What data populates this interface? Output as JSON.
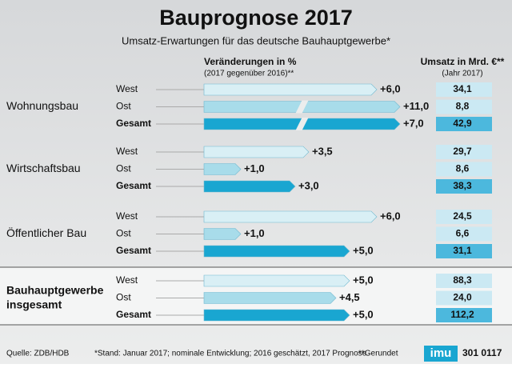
{
  "chart_data": {
    "type": "arrow-bar",
    "title": "Bauprognose 2017",
    "subtitle": "Umsatz-Erwartungen für das deutsche Bauhauptgewerbe*",
    "change_header": "Veränderungen in %",
    "change_subheader": "(2017 gegenüber 2016)**",
    "umsatz_header": "Umsatz in Mrd. €**",
    "umsatz_subheader": "(Jahr 2017)",
    "colors": [
      "#d9eff5",
      "#a8dcea",
      "#19a6d1"
    ],
    "groups": [
      {
        "name": "Wohnungsbau",
        "categories": [
          "West",
          "Ost",
          "Gesamt"
        ],
        "values": [
          6.0,
          11.0,
          7.0
        ],
        "value_labels": [
          "+6,0",
          "+11,0",
          "+7,0"
        ],
        "umsatz": [
          "34,1",
          "8,8",
          "42,9"
        ]
      },
      {
        "name": "Wirtschaftsbau",
        "categories": [
          "West",
          "Ost",
          "Gesamt"
        ],
        "values": [
          3.5,
          1.0,
          3.0
        ],
        "value_labels": [
          "+3,5",
          "+1,0",
          "+3,0"
        ],
        "umsatz": [
          "29,7",
          "8,6",
          "38,3"
        ]
      },
      {
        "name": "Öffentlicher Bau",
        "categories": [
          "West",
          "Ost",
          "Gesamt"
        ],
        "values": [
          6.0,
          1.0,
          5.0
        ],
        "value_labels": [
          "+6,0",
          "+1,0",
          "+5,0"
        ],
        "umsatz": [
          "24,5",
          "6,6",
          "31,1"
        ]
      },
      {
        "name": "Bauhauptgewerbe insgesamt",
        "categories": [
          "West",
          "Ost",
          "Gesamt"
        ],
        "values": [
          5.0,
          4.5,
          5.0
        ],
        "value_labels": [
          "+5,0",
          "+4,5",
          "+5,0"
        ],
        "umsatz": [
          "88,3",
          "24,0",
          "112,2"
        ]
      }
    ],
    "footer": {
      "source": "Quelle: ZDB/HDB",
      "note": "*Stand: Januar 2017; nominale Entwicklung; 2016 geschätzt, 2017 Prognose",
      "note2": "**Gerundet",
      "logo": "imu",
      "code": "301 0117"
    }
  }
}
